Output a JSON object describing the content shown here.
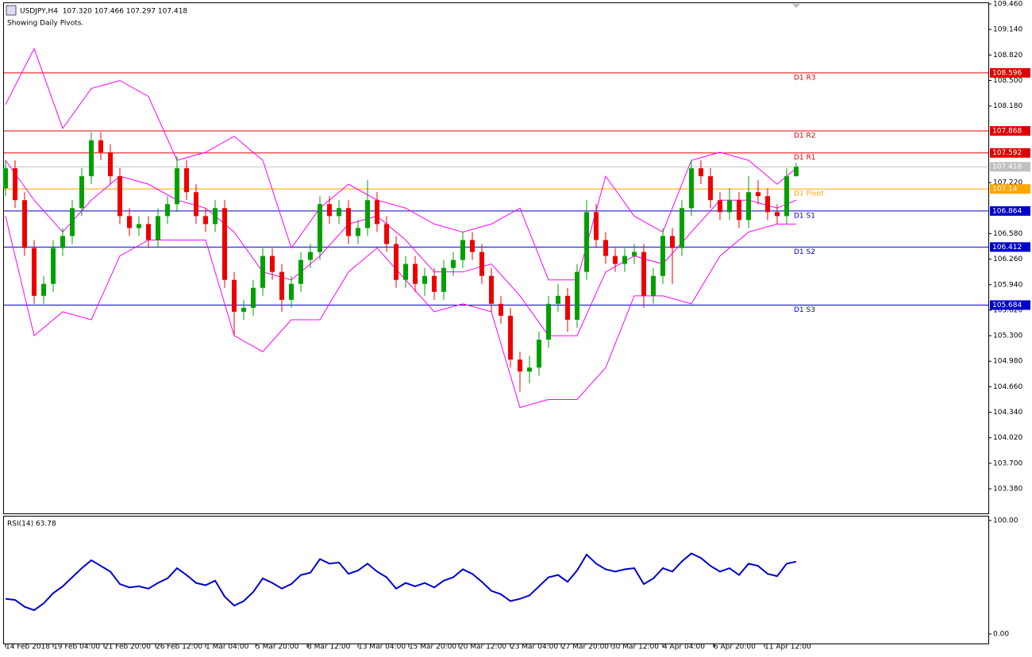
{
  "chart_data": {
    "type": "candlestick",
    "title": "USDJPY,H4  107.320 107.466 107.297 107.418",
    "subtitle": "Showing Daily Pivots.",
    "grid": false,
    "up_color": "#00a000",
    "down_color": "#ee0000",
    "ylim": [
      103.072,
      109.46
    ],
    "yticks": [
      {
        "value": 109.46,
        "label": "109.460"
      },
      {
        "value": 109.14,
        "label": "109.140"
      },
      {
        "value": 108.82,
        "label": "108.820"
      },
      {
        "value": 108.5,
        "label": "108.500"
      },
      {
        "value": 108.18,
        "label": "108.180"
      },
      {
        "value": 107.22,
        "label": "107.220"
      },
      {
        "value": 106.58,
        "label": "106.580"
      },
      {
        "value": 106.26,
        "label": "106.260"
      },
      {
        "value": 105.94,
        "label": "105.940"
      },
      {
        "value": 105.62,
        "label": "105.620"
      },
      {
        "value": 105.3,
        "label": "105.300"
      },
      {
        "value": 104.98,
        "label": "104.980"
      },
      {
        "value": 104.66,
        "label": "104.660"
      },
      {
        "value": 104.34,
        "label": "104.340"
      },
      {
        "value": 104.02,
        "label": "104.020"
      },
      {
        "value": 103.7,
        "label": "103.700"
      },
      {
        "value": 103.38,
        "label": "103.380"
      }
    ],
    "xlim": [
      -0.167,
      103.17
    ],
    "xticks": [
      {
        "value": 0,
        "label": "14 Feb 2018"
      },
      {
        "value": 5,
        "label": "19 Feb 04:00"
      },
      {
        "value": 10.33,
        "label": "21 Feb 20:00"
      },
      {
        "value": 15.75,
        "label": "26 Feb 12:00"
      },
      {
        "value": 21,
        "label": "1 Mar 04:00"
      },
      {
        "value": 26.25,
        "label": "5 Mar 20:00"
      },
      {
        "value": 31.67,
        "label": "8 Mar 12:00"
      },
      {
        "value": 37,
        "label": "13 Mar 04:00"
      },
      {
        "value": 42.33,
        "label": "15 Mar 20:00"
      },
      {
        "value": 47.58,
        "label": "20 Mar 12:00"
      },
      {
        "value": 53,
        "label": "23 Mar 04:00"
      },
      {
        "value": 58.33,
        "label": "27 Mar 20:00"
      },
      {
        "value": 63.58,
        "label": "30 Mar 12:00"
      },
      {
        "value": 69,
        "label": "4 Apr 04:00"
      },
      {
        "value": 74.33,
        "label": "6 Apr 20:00"
      },
      {
        "value": 79.67,
        "label": "11 Apr 12:00"
      }
    ],
    "x": [
      0,
      1,
      2,
      3,
      4,
      5,
      6,
      7,
      8,
      9,
      10,
      11,
      12,
      13,
      14,
      15,
      16,
      17,
      18,
      19,
      20,
      21,
      22,
      23,
      24,
      25,
      26,
      27,
      28,
      29,
      30,
      31,
      32,
      33,
      34,
      35,
      36,
      37,
      38,
      39,
      40,
      41,
      42,
      43,
      44,
      45,
      46,
      47,
      48,
      49,
      50,
      51,
      52,
      53,
      54,
      55,
      56,
      57,
      58,
      59,
      60,
      61,
      62,
      63,
      64,
      65,
      66,
      67,
      68,
      69,
      70,
      71,
      72,
      73,
      74,
      75,
      76,
      77,
      78,
      79,
      80,
      81,
      82,
      83
    ],
    "ohlc": [
      [
        107.15,
        107.5,
        107.05,
        107.4
      ],
      [
        107.4,
        107.5,
        106.9,
        107.0
      ],
      [
        107.0,
        107.1,
        106.3,
        106.4
      ],
      [
        106.4,
        106.5,
        105.7,
        105.8
      ],
      [
        105.8,
        106.05,
        105.7,
        105.95
      ],
      [
        105.95,
        106.5,
        105.85,
        106.4
      ],
      [
        106.4,
        106.65,
        106.3,
        106.55
      ],
      [
        106.55,
        107.0,
        106.45,
        106.9
      ],
      [
        106.9,
        107.4,
        106.8,
        107.3
      ],
      [
        107.3,
        107.85,
        107.2,
        107.75
      ],
      [
        107.75,
        107.85,
        107.5,
        107.6
      ],
      [
        107.6,
        107.7,
        107.2,
        107.3
      ],
      [
        107.3,
        107.4,
        106.7,
        106.8
      ],
      [
        106.8,
        106.9,
        106.55,
        106.65
      ],
      [
        106.65,
        106.8,
        106.55,
        106.7
      ],
      [
        106.7,
        106.8,
        106.4,
        106.5
      ],
      [
        106.5,
        106.9,
        106.4,
        106.8
      ],
      [
        106.8,
        107.05,
        106.7,
        106.95
      ],
      [
        106.95,
        107.55,
        106.85,
        107.4
      ],
      [
        107.4,
        107.5,
        107.0,
        107.1
      ],
      [
        107.1,
        107.2,
        106.7,
        106.8
      ],
      [
        106.8,
        106.9,
        106.6,
        106.7
      ],
      [
        106.7,
        107.0,
        106.6,
        106.9
      ],
      [
        106.9,
        107.0,
        105.9,
        106.0
      ],
      [
        106.0,
        106.1,
        105.3,
        105.6
      ],
      [
        105.6,
        105.75,
        105.5,
        105.65
      ],
      [
        105.65,
        106.0,
        105.55,
        105.9
      ],
      [
        105.9,
        106.4,
        105.8,
        106.3
      ],
      [
        106.3,
        106.4,
        106.0,
        106.1
      ],
      [
        106.1,
        106.2,
        105.6,
        105.75
      ],
      [
        105.75,
        106.05,
        105.65,
        105.95
      ],
      [
        105.95,
        106.35,
        105.85,
        106.25
      ],
      [
        106.25,
        106.45,
        106.15,
        106.35
      ],
      [
        106.35,
        107.05,
        106.25,
        106.95
      ],
      [
        106.95,
        107.05,
        106.7,
        106.8
      ],
      [
        106.8,
        107.0,
        106.7,
        106.9
      ],
      [
        106.9,
        107.0,
        106.45,
        106.55
      ],
      [
        106.55,
        106.75,
        106.45,
        106.65
      ],
      [
        106.65,
        107.25,
        106.55,
        107.0
      ],
      [
        107.0,
        107.1,
        106.6,
        106.7
      ],
      [
        106.7,
        106.8,
        106.35,
        106.45
      ],
      [
        106.45,
        106.55,
        105.9,
        106.0
      ],
      [
        106.0,
        106.3,
        105.9,
        106.2
      ],
      [
        106.2,
        106.3,
        105.85,
        105.95
      ],
      [
        105.95,
        106.15,
        105.8,
        106.05
      ],
      [
        106.05,
        106.15,
        105.75,
        105.85
      ],
      [
        105.85,
        106.25,
        105.75,
        106.15
      ],
      [
        106.15,
        106.35,
        106.05,
        106.25
      ],
      [
        106.25,
        106.6,
        106.15,
        106.5
      ],
      [
        106.5,
        106.6,
        106.25,
        106.35
      ],
      [
        106.35,
        106.45,
        105.95,
        106.05
      ],
      [
        106.05,
        106.15,
        105.6,
        105.7
      ],
      [
        105.7,
        105.8,
        105.45,
        105.55
      ],
      [
        105.55,
        105.65,
        104.9,
        105.0
      ],
      [
        105.0,
        105.1,
        104.6,
        104.85
      ],
      [
        104.85,
        105.05,
        104.7,
        104.9
      ],
      [
        104.9,
        105.35,
        104.8,
        105.25
      ],
      [
        105.25,
        105.8,
        105.15,
        105.7
      ],
      [
        105.7,
        105.95,
        105.6,
        105.8
      ],
      [
        105.8,
        105.9,
        105.35,
        105.5
      ],
      [
        105.5,
        106.2,
        105.4,
        106.1
      ],
      [
        106.1,
        107.0,
        106.0,
        106.85
      ],
      [
        106.85,
        106.95,
        106.4,
        106.5
      ],
      [
        106.5,
        106.6,
        106.2,
        106.3
      ],
      [
        106.3,
        106.4,
        106.1,
        106.2
      ],
      [
        106.2,
        106.4,
        106.1,
        106.3
      ],
      [
        106.3,
        106.45,
        106.2,
        106.35
      ],
      [
        106.35,
        106.45,
        105.65,
        105.8
      ],
      [
        105.8,
        106.15,
        105.7,
        106.05
      ],
      [
        106.05,
        106.65,
        105.95,
        106.55
      ],
      [
        106.55,
        106.65,
        105.95,
        106.4
      ],
      [
        106.4,
        107.0,
        106.3,
        106.9
      ],
      [
        106.9,
        107.5,
        106.8,
        107.4
      ],
      [
        107.4,
        107.5,
        107.2,
        107.3
      ],
      [
        107.3,
        107.4,
        106.9,
        107.0
      ],
      [
        107.0,
        107.1,
        106.75,
        106.85
      ],
      [
        106.85,
        107.15,
        106.75,
        107.0
      ],
      [
        107.0,
        107.1,
        106.65,
        106.75
      ],
      [
        106.75,
        107.3,
        106.65,
        107.1
      ],
      [
        107.1,
        107.25,
        106.95,
        107.05
      ],
      [
        107.05,
        107.15,
        106.75,
        106.85
      ],
      [
        106.85,
        106.95,
        106.7,
        106.8
      ],
      [
        106.8,
        107.4,
        106.7,
        107.3
      ],
      [
        107.3,
        107.466,
        107.297,
        107.418
      ]
    ],
    "bollinger": {
      "color": "#ff00ff",
      "x": [
        0,
        3,
        6,
        9,
        12,
        15,
        18,
        21,
        24,
        27,
        30,
        33,
        36,
        39,
        42,
        45,
        48,
        51,
        54,
        57,
        60,
        63,
        66,
        69,
        72,
        75,
        78,
        81,
        83
      ],
      "upper": [
        108.2,
        108.9,
        107.9,
        108.4,
        108.5,
        108.3,
        107.5,
        107.6,
        107.8,
        107.5,
        106.4,
        106.9,
        107.2,
        107.0,
        106.9,
        106.7,
        106.6,
        106.7,
        106.9,
        106.0,
        106.0,
        107.3,
        106.8,
        106.6,
        107.5,
        107.6,
        107.5,
        107.2,
        107.4
      ],
      "middle": [
        107.5,
        107.0,
        106.6,
        107.0,
        107.3,
        107.2,
        107.0,
        106.9,
        106.6,
        106.1,
        106.0,
        106.3,
        106.7,
        106.8,
        106.5,
        106.1,
        106.1,
        106.2,
        105.8,
        105.3,
        105.3,
        106.1,
        106.3,
        106.2,
        106.6,
        107.0,
        107.0,
        106.9,
        107.0
      ],
      "lower": [
        106.8,
        105.3,
        105.6,
        105.5,
        106.3,
        106.5,
        106.5,
        106.5,
        105.3,
        105.1,
        105.5,
        105.5,
        106.1,
        106.4,
        106.0,
        105.6,
        105.7,
        105.6,
        104.4,
        104.5,
        104.5,
        104.9,
        105.8,
        105.8,
        105.7,
        106.3,
        106.6,
        106.7,
        106.7
      ]
    },
    "pivots": [
      {
        "label": "D1 R3",
        "value": 108.596,
        "color": "#e00000"
      },
      {
        "label": "D1 R2",
        "value": 107.868,
        "color": "#e00000"
      },
      {
        "label": "D1 R1",
        "value": 107.592,
        "color": "#e00000"
      },
      {
        "label": "D1 Pivot",
        "value": 107.14,
        "color": "#ffa500"
      },
      {
        "label": "D1 S1",
        "value": 106.864,
        "color": "#0000cc"
      },
      {
        "label": "D1 S2",
        "value": 106.412,
        "color": "#0000cc"
      },
      {
        "label": "D1 S3",
        "value": 105.684,
        "color": "#0000cc"
      }
    ],
    "current_price": 107.418,
    "current_color": "#c0c0c0",
    "rsi": {
      "label": "RSI(14) 63.78",
      "color": "#0000cc",
      "ylim": [
        0,
        100
      ],
      "yticks": [
        {
          "value": 100,
          "label": "100.00"
        },
        {
          "value": 0,
          "label": "0.00"
        }
      ],
      "values": [
        31,
        30,
        24,
        21,
        27,
        36,
        42,
        50,
        58,
        65,
        60,
        55,
        44,
        41,
        42,
        40,
        45,
        49,
        58,
        52,
        45,
        43,
        47,
        33,
        25,
        29,
        37,
        49,
        45,
        40,
        44,
        52,
        54,
        66,
        62,
        63,
        53,
        56,
        62,
        55,
        50,
        40,
        45,
        42,
        45,
        41,
        47,
        50,
        57,
        53,
        46,
        38,
        35,
        29,
        31,
        34,
        42,
        50,
        52,
        46,
        56,
        70,
        62,
        57,
        55,
        57,
        58,
        44,
        49,
        58,
        55,
        64,
        71,
        67,
        60,
        55,
        58,
        52,
        62,
        60,
        53,
        51,
        62,
        63.78
      ]
    }
  }
}
